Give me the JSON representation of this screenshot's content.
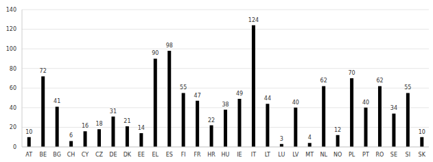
{
  "chart_data": {
    "type": "bar",
    "categories": [
      "AT",
      "BE",
      "BG",
      "CH",
      "CY",
      "CZ",
      "DE",
      "DK",
      "EE",
      "EL",
      "ES",
      "FI",
      "FR",
      "HR",
      "HU",
      "IE",
      "IT",
      "LT",
      "LU",
      "LV",
      "MT",
      "NL",
      "NO",
      "PL",
      "PT",
      "RO",
      "SE",
      "SI",
      "SK"
    ],
    "values": [
      10,
      72,
      41,
      6,
      16,
      18,
      31,
      21,
      14,
      90,
      98,
      55,
      47,
      22,
      38,
      49,
      124,
      44,
      3,
      40,
      4,
      62,
      12,
      70,
      40,
      62,
      34,
      55,
      10
    ],
    "color": "#000000",
    "ylim": [
      0,
      140
    ],
    "yticks": [
      0,
      20,
      40,
      60,
      80,
      100,
      120,
      140
    ],
    "grid": true,
    "data_labels": true
  }
}
